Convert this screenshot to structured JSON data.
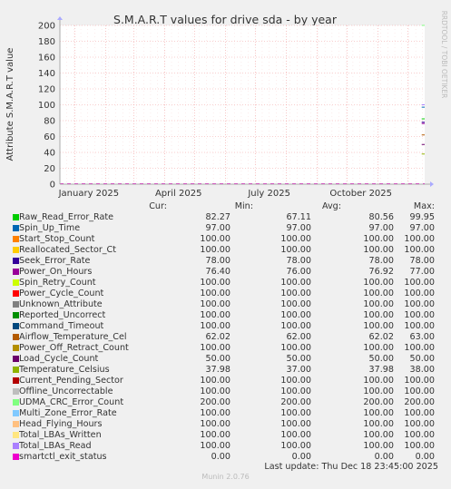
{
  "chart_data": {
    "type": "line",
    "title": "S.M.A.R.T values for drive sda - by year",
    "ylabel": "Attribute S.M.A.R.T value",
    "side_label": "RRDTOOL / TOBI OETIKER",
    "ylim": [
      0,
      200
    ],
    "yticks": [
      0,
      20,
      40,
      60,
      80,
      100,
      120,
      140,
      160,
      180,
      200
    ],
    "xlim": [
      "2024-12-17",
      "2025-12-18"
    ],
    "xticks": [
      {
        "date": "2025-01-15",
        "label": "January 2025"
      },
      {
        "date": "2025-04-15",
        "label": "April 2025"
      },
      {
        "date": "2025-07-15",
        "label": "July 2025"
      },
      {
        "date": "2025-10-15",
        "label": "October 2025"
      }
    ],
    "grid": true,
    "data_start": "2025-12-15",
    "columns": [
      "Cur:",
      "Min:",
      "Avg:",
      "Max:"
    ],
    "series": [
      {
        "name": "Raw_Read_Error_Rate",
        "color": "#00cc00",
        "cur": "82.27",
        "min": "67.11",
        "avg": "80.56",
        "max": "99.95"
      },
      {
        "name": "Spin_Up_Time",
        "color": "#0066b3",
        "cur": "97.00",
        "min": "97.00",
        "avg": "97.00",
        "max": "97.00"
      },
      {
        "name": "Start_Stop_Count",
        "color": "#ff8000",
        "cur": "100.00",
        "min": "100.00",
        "avg": "100.00",
        "max": "100.00"
      },
      {
        "name": "Reallocated_Sector_Ct",
        "color": "#ffcc00",
        "cur": "100.00",
        "min": "100.00",
        "avg": "100.00",
        "max": "100.00"
      },
      {
        "name": "Seek_Error_Rate",
        "color": "#330099",
        "cur": "78.00",
        "min": "78.00",
        "avg": "78.00",
        "max": "78.00"
      },
      {
        "name": "Power_On_Hours",
        "color": "#990099",
        "cur": "76.40",
        "min": "76.00",
        "avg": "76.92",
        "max": "77.00"
      },
      {
        "name": "Spin_Retry_Count",
        "color": "#ccff00",
        "cur": "100.00",
        "min": "100.00",
        "avg": "100.00",
        "max": "100.00"
      },
      {
        "name": "Power_Cycle_Count",
        "color": "#ff0000",
        "cur": "100.00",
        "min": "100.00",
        "avg": "100.00",
        "max": "100.00"
      },
      {
        "name": "Unknown_Attribute",
        "color": "#808080",
        "cur": "100.00",
        "min": "100.00",
        "avg": "100.00",
        "max": "100.00"
      },
      {
        "name": "Reported_Uncorrect",
        "color": "#008f00",
        "cur": "100.00",
        "min": "100.00",
        "avg": "100.00",
        "max": "100.00"
      },
      {
        "name": "Command_Timeout",
        "color": "#00487d",
        "cur": "100.00",
        "min": "100.00",
        "avg": "100.00",
        "max": "100.00"
      },
      {
        "name": "Airflow_Temperature_Cel",
        "color": "#b35a00",
        "cur": "62.02",
        "min": "62.00",
        "avg": "62.02",
        "max": "63.00"
      },
      {
        "name": "Power_Off_Retract_Count",
        "color": "#b38f00",
        "cur": "100.00",
        "min": "100.00",
        "avg": "100.00",
        "max": "100.00"
      },
      {
        "name": "Load_Cycle_Count",
        "color": "#6b006b",
        "cur": "50.00",
        "min": "50.00",
        "avg": "50.00",
        "max": "50.00"
      },
      {
        "name": "Temperature_Celsius",
        "color": "#8fb300",
        "cur": "37.98",
        "min": "37.00",
        "avg": "37.98",
        "max": "38.00"
      },
      {
        "name": "Current_Pending_Sector",
        "color": "#b30000",
        "cur": "100.00",
        "min": "100.00",
        "avg": "100.00",
        "max": "100.00"
      },
      {
        "name": "Offline_Uncorrectable",
        "color": "#bebebe",
        "cur": "100.00",
        "min": "100.00",
        "avg": "100.00",
        "max": "100.00"
      },
      {
        "name": "UDMA_CRC_Error_Count",
        "color": "#80ff80",
        "cur": "200.00",
        "min": "200.00",
        "avg": "200.00",
        "max": "200.00"
      },
      {
        "name": "Multi_Zone_Error_Rate",
        "color": "#80c9ff",
        "cur": "100.00",
        "min": "100.00",
        "avg": "100.00",
        "max": "100.00"
      },
      {
        "name": "Head_Flying_Hours",
        "color": "#ffc080",
        "cur": "100.00",
        "min": "100.00",
        "avg": "100.00",
        "max": "100.00"
      },
      {
        "name": "Total_LBAs_Written",
        "color": "#ffe680",
        "cur": "100.00",
        "min": "100.00",
        "avg": "100.00",
        "max": "100.00"
      },
      {
        "name": "Total_LBAs_Read",
        "color": "#aa80ff",
        "cur": "100.00",
        "min": "100.00",
        "avg": "100.00",
        "max": "100.00"
      },
      {
        "name": "smartctl_exit_status",
        "color": "#ee00cc",
        "cur": "0.00",
        "min": "0.00",
        "avg": "0.00",
        "max": "0.00"
      }
    ]
  },
  "last_update": "Last update: Thu Dec 18 23:45:00 2025",
  "footer": "Munin 2.0.76"
}
